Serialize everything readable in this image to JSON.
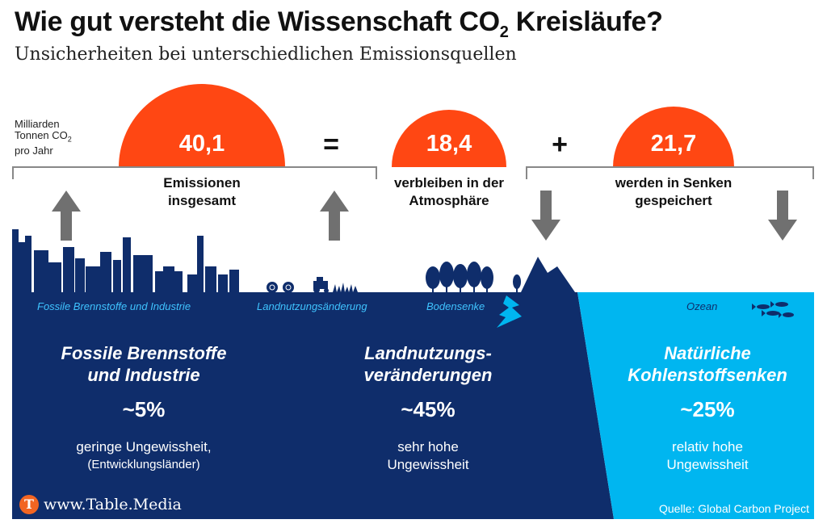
{
  "title": "Wie gut versteht die Wissenschaft CO",
  "title_sub": "2",
  "title_end": " Kreisläufe?",
  "subtitle": "Unsicherheiten bei unterschiedlichen Emissionsquellen",
  "unit": {
    "line1": "Milliarden",
    "line2": "Tonnen CO",
    "line2_sub": "2",
    "line3": "pro Jahr"
  },
  "equation": {
    "total": {
      "value": "40,1",
      "label_line1": "Emissionen",
      "label_line2": "insgesamt"
    },
    "equals": "=",
    "atmosphere": {
      "value": "18,4",
      "label_line1": "verbleiben in der",
      "label_line2": "Atmosphäre"
    },
    "plus": "+",
    "sinks": {
      "value": "21,7",
      "label_line1": "werden in Senken",
      "label_line2": "gespeichert"
    }
  },
  "scene_labels": {
    "fossil": "Fossile Brennstoffe und Industrie",
    "landuse": "Landnutzungsänderung",
    "soil": "Bodensenke",
    "ocean": "Ozean"
  },
  "sections": [
    {
      "title_line1": "Fossile Brennstoffe",
      "title_line2": "und Industrie",
      "percent": "~5%",
      "desc_line1": "geringe Ungewissheit,",
      "desc_line2": "(Entwicklungsländer)"
    },
    {
      "title_line1": "Landnutzungs-",
      "title_line2": "veränderungen",
      "percent": "~45%",
      "desc_line1": "sehr hohe",
      "desc_line2": "Ungewissheit"
    },
    {
      "title_line1": "Natürliche",
      "title_line2": "Kohlenstoffsenken",
      "percent": "~25%",
      "desc_line1": "relativ hohe",
      "desc_line2": "Ungewissheit"
    }
  ],
  "footer": {
    "logo_letter": "T",
    "site": "www.Table.Media",
    "source": "Quelle: Global Carbon Project"
  },
  "colors": {
    "navy": "#0f2d6b",
    "ocean": "#00b6f0",
    "accent": "#ff4713",
    "arrow": "#707070",
    "label_light": "#3fc3ff"
  }
}
